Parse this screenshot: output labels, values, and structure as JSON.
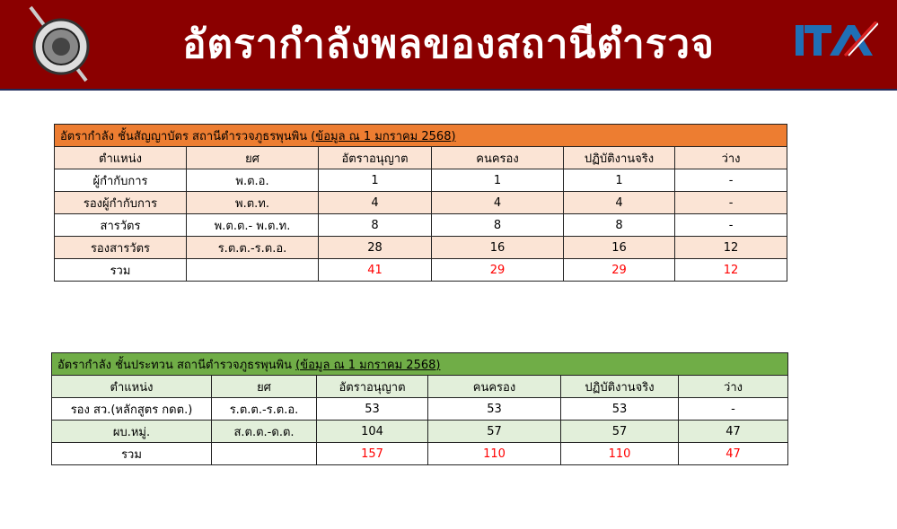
{
  "header": {
    "title": "อัตรากำลังพลของสถานีตำรวจ",
    "logo_left": "police-emblem",
    "logo_right": "ITA",
    "bg_color": "#8b0000"
  },
  "tables": [
    {
      "caption": "อัตรากำลัง ชั้นสัญญาบัตร สถานีตำรวจภูธรพุนพิน ",
      "caption_date": "(ข้อมูล ณ 1 มกราคม 2568)",
      "color": "#ed7d31",
      "alt_color": "#fbe4d5",
      "columns": [
        "ตำแหน่ง",
        "ยศ",
        "อัตราอนุญาต",
        "คนครอง",
        "ปฏิบัติงานจริง",
        "ว่าง"
      ],
      "rows": [
        [
          "ผู้กำกับการ",
          "พ.ต.อ.",
          "1",
          "1",
          "1",
          "-"
        ],
        [
          "รองผู้กำกับการ",
          "พ.ต.ท.",
          "4",
          "4",
          "4",
          "-"
        ],
        [
          "สารวัตร",
          "พ.ต.ต.- พ.ต.ท.",
          "8",
          "8",
          "8",
          "-"
        ],
        [
          "รองสารวัตร",
          "ร.ต.ต.-ร.ต.อ.",
          "28",
          "16",
          "16",
          "12"
        ]
      ],
      "total": [
        "รวม",
        "",
        "41",
        "29",
        "29",
        "12"
      ]
    },
    {
      "caption": "อัตรากำลัง ชั้นประทวน สถานีตำรวจภูธรพุนพิน ",
      "caption_date": "(ข้อมูล ณ 1 มกราคม 2568)",
      "color": "#70ad47",
      "alt_color": "#e2efda",
      "columns": [
        "ตำแหน่ง",
        "ยศ",
        "อัตราอนุญาต",
        "คนครอง",
        "ปฏิบัติงานจริง",
        "ว่าง"
      ],
      "rows": [
        [
          "รอง สว.(หลักสูตร กดต.)",
          "ร.ต.ต.-ร.ต.อ.",
          "53",
          "53",
          "53",
          "-"
        ],
        [
          "ผบ.หมู่.",
          "ส.ต.ต.-ด.ต.",
          "104",
          "57",
          "57",
          "47"
        ]
      ],
      "total": [
        "รวม",
        "",
        "157",
        "110",
        "110",
        "47"
      ]
    }
  ]
}
